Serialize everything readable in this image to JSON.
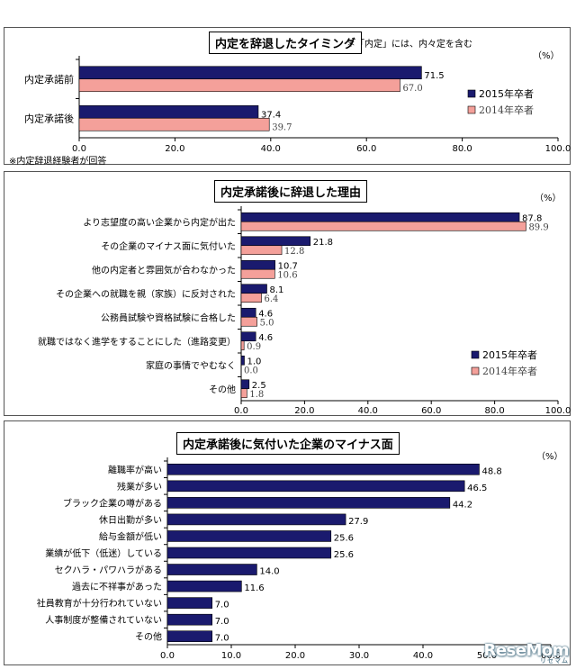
{
  "chart_data": [
    {
      "type": "bar",
      "orientation": "horizontal",
      "title": "内定を辞退したタイミング",
      "note": "＊「内定」には、内々定を含む",
      "unit": "（%）",
      "footnote": "※内定辞退経験者が回答",
      "categories": [
        "内定承諾前",
        "内定承諾後"
      ],
      "series": [
        {
          "name": "2015年卒者",
          "values": [
            71.5,
            37.4
          ],
          "color": "#1a1a6e"
        },
        {
          "name": "2014年卒者",
          "values": [
            67.0,
            39.7
          ],
          "color": "#f4a09a"
        }
      ],
      "value_labels": [
        [
          "71.5",
          "37.4"
        ],
        [
          "67.0",
          "39.7"
        ]
      ],
      "xlim": [
        0,
        100
      ],
      "xticks": [
        "0.0",
        "20.0",
        "40.0",
        "60.0",
        "80.0",
        "100.0"
      ],
      "legend": "bottom-right",
      "grid": false
    },
    {
      "type": "bar",
      "orientation": "horizontal",
      "title": "内定承諾後に辞退した理由",
      "unit": "（%）",
      "categories": [
        "より志望度の高い企業から内定が出た",
        "その企業のマイナス面に気付いた",
        "他の内定者と雰囲気が合わなかった",
        "その企業への就職を親（家族）に反対された",
        "公務員試験や資格試験に合格した",
        "就職ではなく進学をすることにした（進路変更）",
        "家庭の事情でやむなく",
        "その他"
      ],
      "series": [
        {
          "name": "2015年卒者",
          "values": [
            87.8,
            21.8,
            10.7,
            8.1,
            4.6,
            4.6,
            1.0,
            2.5
          ],
          "color": "#1a1a6e"
        },
        {
          "name": "2014年卒者",
          "values": [
            89.9,
            12.8,
            10.6,
            6.4,
            5.0,
            0.9,
            0.0,
            1.8
          ],
          "color": "#f4a09a"
        }
      ],
      "value_labels": [
        [
          "87.8",
          "21.8",
          "10.7",
          "8.1",
          "4.6",
          "4.6",
          "1.0",
          "2.5"
        ],
        [
          "89.9",
          "12.8",
          "10.6",
          "6.4",
          "5.0",
          "0.9",
          "0.0",
          "1.8"
        ]
      ],
      "xlim": [
        0,
        100
      ],
      "xticks": [
        "0.0",
        "20.0",
        "40.0",
        "60.0",
        "80.0",
        "100.0"
      ],
      "legend": "bottom-right",
      "grid": false
    },
    {
      "type": "bar",
      "orientation": "horizontal",
      "title": "内定承諾後に気付いた企業のマイナス面",
      "unit": "（%）",
      "categories": [
        "離職率が高い",
        "残業が多い",
        "ブラック企業の噂がある",
        "休日出勤が多い",
        "給与金額が低い",
        "業績が低下（低迷）している",
        "セクハラ・パワハラがある",
        "過去に不祥事があった",
        "社員教育が十分行われていない",
        "人事制度が整備されていない",
        "その他"
      ],
      "series": [
        {
          "name": "",
          "values": [
            48.8,
            46.5,
            44.2,
            27.9,
            25.6,
            25.6,
            14.0,
            11.6,
            7.0,
            7.0,
            7.0
          ],
          "color": "#1a1a6e"
        }
      ],
      "value_labels": [
        [
          "48.8",
          "46.5",
          "44.2",
          "27.9",
          "25.6",
          "25.6",
          "14.0",
          "11.6",
          "7.0",
          "7.0",
          "7.0"
        ]
      ],
      "xlim": [
        0,
        60
      ],
      "xticks": [
        "0.0",
        "10.0",
        "20.0",
        "30.0",
        "40.0",
        "50.0",
        "60.0"
      ],
      "grid": false
    }
  ],
  "watermark": {
    "main": "ReseMom",
    "sub": "リセマム"
  }
}
